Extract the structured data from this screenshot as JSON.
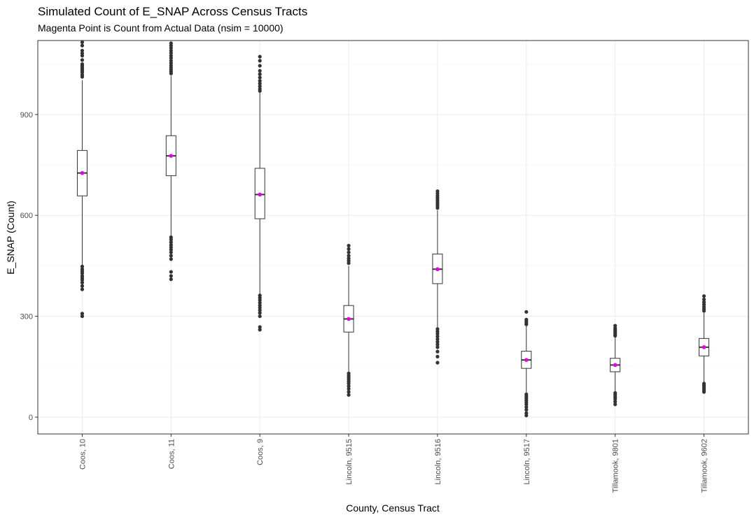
{
  "colors": {
    "actual_point": "#e600e6",
    "box_line": "#333333",
    "outlier": "#333333",
    "grid": "#ebebeb",
    "panel_border": "#333333"
  },
  "chart_data": {
    "type": "boxplot",
    "title": "Simulated Count of E_SNAP Across Census Tracts",
    "subtitle": "Magenta Point is Count from Actual Data (nsim = 10000)",
    "xlabel": "County, Census Tract",
    "ylabel": "E_SNAP (Count)",
    "ylim": [
      -50,
      1120
    ],
    "yticks": [
      0,
      300,
      600,
      900
    ],
    "grid": true,
    "legend": "none",
    "categories": [
      "Coos, 10",
      "Coos, 11",
      "Coos, 9",
      "Lincoln, 9515",
      "Lincoln, 9516",
      "Lincoln, 9517",
      "Tillamook, 9801",
      "Tillamook, 9602"
    ],
    "boxes": [
      {
        "category": "Coos, 10",
        "q1": 658,
        "median": 726,
        "q3": 793,
        "whisker_low": 452,
        "whisker_high": 1002,
        "actual": 726,
        "outliers": [
          1115,
          1105,
          1090,
          1082,
          1075,
          1062,
          1050,
          1045,
          1040,
          1035,
          1030,
          1025,
          1018,
          1012,
          448,
          440,
          434,
          428,
          420,
          414,
          408,
          400,
          390,
          380,
          308,
          300
        ]
      },
      {
        "category": "Coos, 11",
        "q1": 718,
        "median": 777,
        "q3": 837,
        "whisker_low": 540,
        "whisker_high": 1015,
        "actual": 777,
        "outliers": [
          1112,
          1105,
          1098,
          1090,
          1083,
          1075,
          1068,
          1060,
          1053,
          1046,
          1040,
          1034,
          1028,
          1022,
          535,
          528,
          520,
          512,
          505,
          498,
          490,
          480,
          470,
          432,
          420,
          410
        ]
      },
      {
        "category": "Coos, 9",
        "q1": 590,
        "median": 662,
        "q3": 740,
        "whisker_low": 365,
        "whisker_high": 965,
        "actual": 662,
        "outliers": [
          1072,
          1060,
          1045,
          1030,
          1020,
          1010,
          1000,
          992,
          984,
          976,
          970,
          362,
          355,
          348,
          340,
          332,
          325,
          318,
          310,
          300,
          268,
          260
        ]
      },
      {
        "category": "Lincoln, 9515",
        "q1": 253,
        "median": 292,
        "q3": 332,
        "whisker_low": 135,
        "whisker_high": 450,
        "actual": 292,
        "outliers": [
          510,
          500,
          490,
          480,
          472,
          465,
          458,
          130,
          124,
          118,
          112,
          106,
          100,
          92,
          84,
          75,
          66
        ]
      },
      {
        "category": "Lincoln, 9516",
        "q1": 397,
        "median": 440,
        "q3": 485,
        "whisker_low": 265,
        "whisker_high": 615,
        "actual": 440,
        "outliers": [
          672,
          665,
          658,
          652,
          646,
          640,
          634,
          628,
          622,
          262,
          255,
          248,
          240,
          232,
          224,
          216,
          208,
          195,
          180,
          162
        ]
      },
      {
        "category": "Lincoln, 9517",
        "q1": 145,
        "median": 170,
        "q3": 196,
        "whisker_low": 72,
        "whisker_high": 272,
        "actual": 170,
        "outliers": [
          313,
          290,
          285,
          280,
          276,
          68,
          62,
          56,
          50,
          44,
          38,
          30,
          22,
          12,
          5
        ]
      },
      {
        "category": "Tillamook, 9801",
        "q1": 135,
        "median": 155,
        "q3": 175,
        "whisker_low": 75,
        "whisker_high": 238,
        "actual": 155,
        "outliers": [
          272,
          265,
          260,
          255,
          250,
          245,
          242,
          72,
          66,
          60,
          54,
          46,
          38
        ]
      },
      {
        "category": "Tillamook, 9602",
        "q1": 182,
        "median": 208,
        "q3": 234,
        "whisker_low": 103,
        "whisker_high": 310,
        "actual": 208,
        "outliers": [
          360,
          350,
          342,
          335,
          328,
          322,
          316,
          100,
          95,
          90,
          85,
          80,
          75
        ]
      }
    ]
  }
}
